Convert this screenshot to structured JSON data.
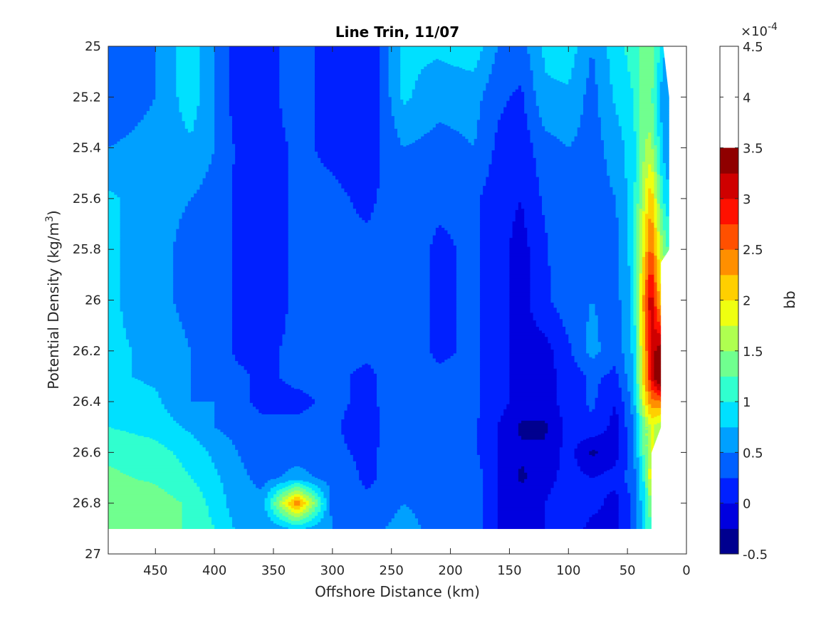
{
  "chart_data": {
    "type": "heatmap",
    "style": "filled-contour",
    "title": "Line Trin, 11/07",
    "xlabel": "Offshore Distance (km)",
    "ylabel": "Potential Density (kg/m",
    "ylabel_sup": "3",
    "ylabel_close": ")",
    "x_reversed": true,
    "y_reversed": true,
    "xlim": [
      490,
      0
    ],
    "ylim": [
      25,
      27
    ],
    "xticks": [
      "450",
      "400",
      "350",
      "300",
      "250",
      "200",
      "150",
      "100",
      "50",
      "0"
    ],
    "yticks": [
      "25",
      "25.2",
      "25.4",
      "25.6",
      "25.8",
      "26",
      "26.2",
      "26.4",
      "26.6",
      "26.8",
      "27"
    ],
    "grid": false,
    "colorbar": {
      "label": "bb",
      "exponent_prefix": "×10",
      "exponent_power": "-4",
      "range": [
        -0.5,
        4.5
      ],
      "step": 0.25,
      "tick_labels": [
        "-0.5",
        "0",
        "0.5",
        "1",
        "1.5",
        "2",
        "2.5",
        "3",
        "3.5",
        "4",
        "4.5"
      ],
      "colors": [
        "#00008F",
        "#0000DF",
        "#0020FF",
        "#0060FF",
        "#00A0FF",
        "#00E0FF",
        "#30FFCF",
        "#70FF8F",
        "#AFFF50",
        "#EFFF10",
        "#FFCF00",
        "#FF8F00",
        "#FF5000",
        "#FF1000",
        "#CF0000",
        "#8F0000"
      ]
    },
    "x_km": [
      490,
      450,
      420,
      400,
      380,
      360,
      330,
      300,
      270,
      240,
      210,
      180,
      160,
      140,
      120,
      100,
      80,
      60,
      45,
      35,
      30,
      20,
      10
    ],
    "density": [
      25.0,
      25.2,
      25.4,
      25.6,
      25.8,
      26.0,
      26.2,
      26.3,
      26.4,
      26.5,
      26.6,
      26.7,
      26.8,
      26.9
    ],
    "bb_x1e4": [
      [
        0.3,
        0.5,
        0.9,
        0.5,
        0.1,
        0.1,
        0.4,
        0.1,
        0.0,
        0.8,
        0.8,
        0.9,
        0.5,
        0.4,
        0.8,
        0.9,
        0.5,
        0.9,
        1.1,
        1.5,
        1.5,
        0.8,
        0.8
      ],
      [
        0.3,
        0.5,
        0.9,
        0.5,
        0.1,
        0.1,
        0.4,
        0.1,
        0.0,
        0.8,
        0.6,
        0.6,
        0.3,
        0.2,
        0.7,
        0.7,
        0.4,
        0.8,
        1.0,
        1.4,
        1.3,
        0.6,
        0.4
      ],
      [
        0.5,
        0.6,
        0.7,
        0.5,
        0.2,
        0.1,
        0.3,
        0.2,
        0.1,
        0.5,
        0.4,
        0.5,
        0.2,
        0.1,
        0.4,
        0.5,
        0.4,
        0.6,
        0.9,
        1.5,
        1.6,
        0.7,
        0.4
      ],
      [
        0.8,
        0.6,
        0.5,
        0.4,
        0.2,
        0.1,
        0.3,
        0.3,
        0.2,
        0.4,
        0.3,
        0.3,
        0.1,
        0.0,
        0.3,
        0.5,
        0.4,
        0.5,
        0.9,
        1.8,
        2.2,
        1.0,
        0.6
      ],
      [
        0.8,
        0.6,
        0.4,
        0.4,
        0.2,
        0.1,
        0.3,
        0.3,
        0.3,
        0.4,
        0.2,
        0.3,
        0.1,
        -0.1,
        0.2,
        0.5,
        0.5,
        0.4,
        0.9,
        2.1,
        2.6,
        1.5,
        0.9
      ],
      [
        0.8,
        0.6,
        0.4,
        0.4,
        0.2,
        0.1,
        0.3,
        0.3,
        0.3,
        0.4,
        0.2,
        0.3,
        0.1,
        -0.1,
        0.2,
        0.4,
        0.5,
        0.4,
        0.8,
        2.5,
        3.2,
        1.8,
        1.0
      ],
      [
        0.8,
        0.7,
        0.5,
        0.4,
        0.2,
        0.2,
        0.3,
        0.3,
        0.3,
        0.4,
        0.2,
        0.3,
        0.1,
        -0.1,
        -0.1,
        0.2,
        0.6,
        0.3,
        0.8,
        2.3,
        3.1,
        3.5,
        1.5
      ],
      [
        0.8,
        0.7,
        0.5,
        0.4,
        0.3,
        0.2,
        0.3,
        0.3,
        0.2,
        0.4,
        0.3,
        0.3,
        0.1,
        -0.1,
        -0.1,
        0.1,
        0.3,
        0.2,
        0.7,
        2.3,
        3.0,
        4.0,
        1.5
      ],
      [
        0.9,
        0.8,
        0.5,
        0.5,
        0.3,
        0.2,
        0.2,
        0.3,
        0.2,
        0.4,
        0.3,
        0.3,
        0.1,
        -0.1,
        -0.1,
        0.1,
        0.3,
        0.0,
        0.6,
        2.0,
        2.4,
        2.5,
        1.5
      ],
      [
        1.0,
        0.9,
        0.7,
        0.5,
        0.4,
        0.3,
        0.3,
        0.3,
        0.1,
        0.5,
        0.3,
        0.3,
        0.0,
        -0.3,
        -0.3,
        0.1,
        0.2,
        -0.1,
        0.5,
        1.4,
        1.8,
        1.5,
        1.5
      ],
      [
        1.2,
        1.1,
        0.9,
        0.7,
        0.5,
        0.3,
        0.4,
        0.3,
        0.2,
        0.4,
        0.3,
        0.3,
        0.0,
        -0.2,
        -0.2,
        0.1,
        -0.3,
        -0.1,
        0.4,
        1.4,
        1.8,
        1.5,
        1.5
      ],
      [
        1.3,
        1.2,
        1.0,
        0.8,
        0.6,
        0.4,
        0.6,
        0.4,
        0.2,
        0.4,
        0.4,
        0.4,
        0.0,
        -0.3,
        -0.1,
        0.1,
        0.0,
        0.1,
        0.4,
        1.1,
        2.0,
        1.5,
        1.5
      ],
      [
        1.5,
        1.4,
        1.2,
        0.9,
        0.6,
        0.6,
        2.5,
        0.4,
        0.3,
        0.5,
        0.4,
        0.4,
        0.0,
        -0.1,
        0.0,
        0.2,
        0.1,
        -0.1,
        0.3,
        1.0,
        1.5,
        1.5,
        1.5
      ],
      [
        1.5,
        1.4,
        1.2,
        1.0,
        0.7,
        0.5,
        0.8,
        0.5,
        0.4,
        0.6,
        0.4,
        0.4,
        0.0,
        -0.1,
        0.0,
        0.2,
        -0.1,
        -0.1,
        0.3,
        1.0,
        1.2,
        1.2,
        1.2
      ]
    ],
    "data_edge": [
      [
        25.0,
        20
      ],
      [
        25.2,
        15
      ],
      [
        25.6,
        15
      ],
      [
        25.8,
        15
      ],
      [
        25.85,
        22
      ],
      [
        26.0,
        22
      ],
      [
        26.3,
        22
      ],
      [
        26.5,
        22
      ],
      [
        26.6,
        30
      ],
      [
        26.9,
        30
      ]
    ]
  }
}
